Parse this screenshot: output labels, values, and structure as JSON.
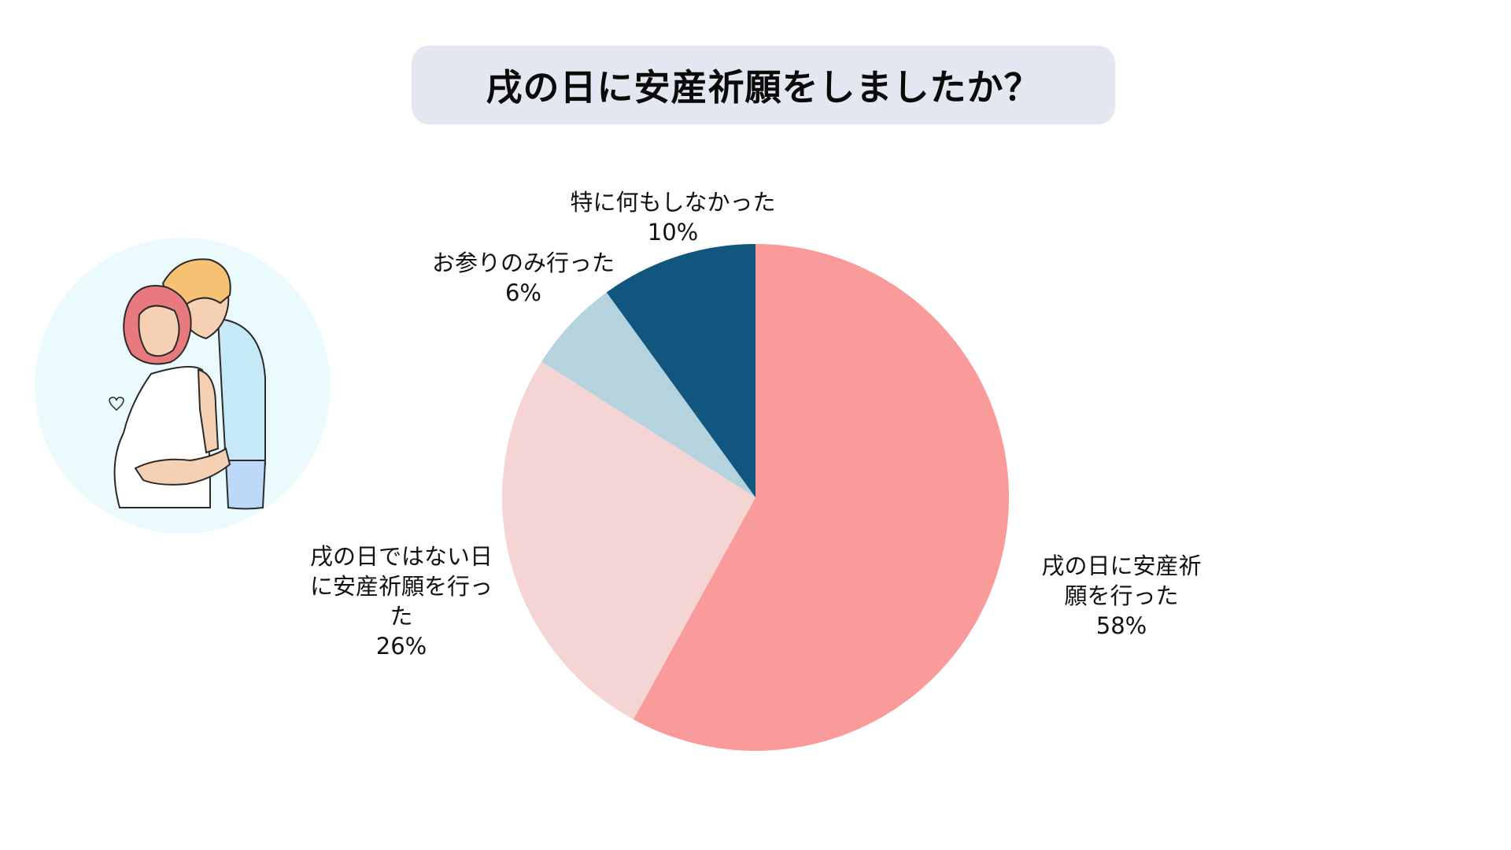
{
  "title": "戌の日に安産祈願をしましたか？",
  "illustration": {
    "name": "pregnant-couple-illustration",
    "bg_color": "#ebfbfd"
  },
  "chart_data": {
    "type": "pie",
    "title": "戌の日に安産祈願をしましたか？",
    "start_angle_deg": 0,
    "direction": "clockwise",
    "categories": [
      "戌の日に安産祈願を行った",
      "戌の日ではない日に安産祈願を行った",
      "お参りのみ行った",
      "特に何もしなかった"
    ],
    "values": [
      58,
      26,
      6,
      10
    ],
    "unit": "%",
    "colors": [
      "#f99a9b",
      "#f4d5d3",
      "#b5d3de",
      "#10567f"
    ],
    "legend": "none (data labels outside slices)"
  },
  "labels": [
    {
      "lines": [
        "戌の日に安産祈",
        "願を行った"
      ],
      "value": "58%"
    },
    {
      "lines": [
        "戌の日ではない日",
        "に安産祈願を行っ",
        "た"
      ],
      "value": "26%"
    },
    {
      "lines": [
        "お参りのみ行った"
      ],
      "value": "6%"
    },
    {
      "lines": [
        "特に何もしなかった"
      ],
      "value": "10%"
    }
  ]
}
